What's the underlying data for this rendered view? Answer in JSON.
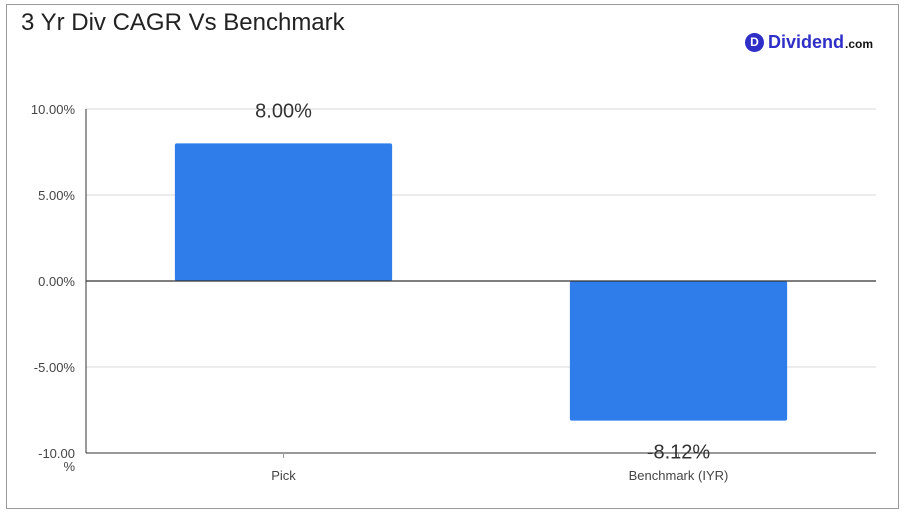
{
  "brand": {
    "badge": "D",
    "name": "Dividend",
    "tld": ".com"
  },
  "colors": {
    "bar": "#2f7deb",
    "grid": "#d9d9d9",
    "axis": "#333333"
  },
  "chart_data": {
    "type": "bar",
    "title": "3 Yr Div CAGR Vs Benchmark",
    "categories": [
      "Pick",
      "Benchmark (IYR)"
    ],
    "values": [
      8.0,
      -8.12
    ],
    "value_labels": [
      "8.00%",
      "-8.12%"
    ],
    "ylim": [
      -10,
      10
    ],
    "yticks": [
      10,
      5,
      0,
      -5,
      -10
    ],
    "ytick_labels": [
      "10.00%",
      "5.00%",
      "0.00%",
      "-5.00%",
      "-10.00 %"
    ],
    "grid": true,
    "legend": "none",
    "xlabel": "",
    "ylabel": ""
  }
}
